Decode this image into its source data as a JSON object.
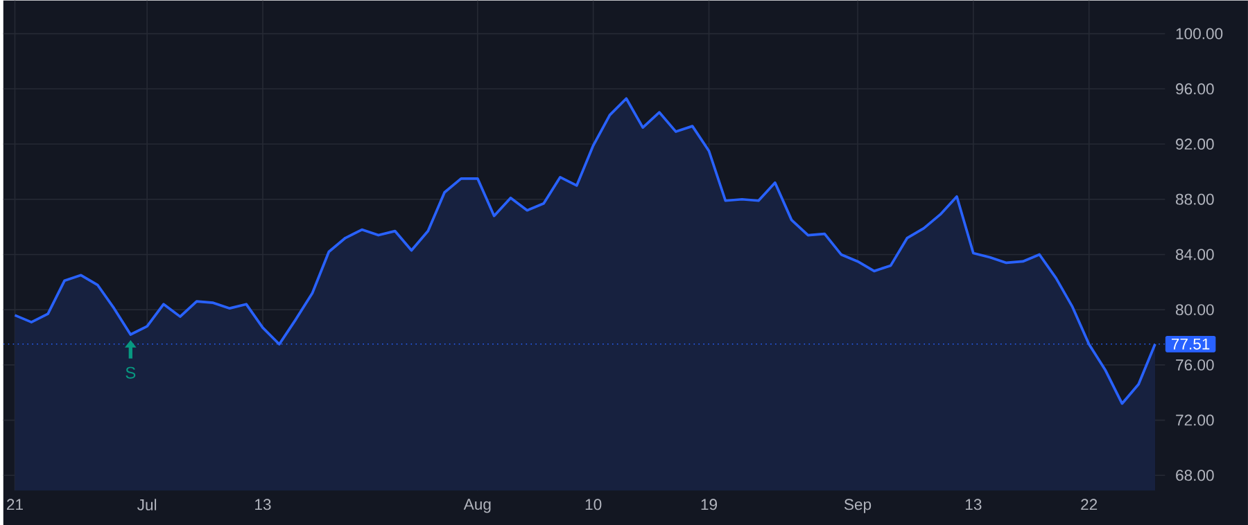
{
  "chart_data": {
    "type": "area",
    "categories": [
      "21",
      null,
      null,
      null,
      null,
      null,
      null,
      null,
      "Jul",
      null,
      null,
      null,
      null,
      null,
      null,
      "13",
      null,
      null,
      null,
      null,
      null,
      null,
      null,
      null,
      null,
      null,
      null,
      null,
      "Aug",
      null,
      null,
      null,
      null,
      null,
      null,
      "10",
      null,
      null,
      null,
      null,
      null,
      null,
      "19",
      null,
      null,
      null,
      null,
      null,
      null,
      null,
      null,
      "Sep",
      null,
      null,
      null,
      null,
      null,
      null,
      "13",
      null,
      null,
      null,
      null,
      null,
      null,
      "22",
      null,
      null,
      null,
      null
    ],
    "series": [
      {
        "color": "#2962ff",
        "values": [
          79.6,
          79.1,
          79.7,
          82.1,
          82.5,
          81.8,
          80.1,
          78.2,
          78.8,
          80.4,
          79.5,
          80.6,
          80.5,
          80.1,
          80.4,
          78.7,
          77.5,
          79.3,
          81.2,
          84.2,
          85.2,
          85.8,
          85.4,
          85.7,
          84.3,
          85.7,
          88.5,
          89.5,
          89.5,
          86.8,
          88.1,
          87.2,
          87.7,
          89.6,
          89.0,
          91.9,
          94.1,
          95.3,
          93.2,
          94.3,
          92.9,
          93.3,
          91.5,
          87.9,
          88.0,
          87.9,
          89.2,
          86.5,
          85.4,
          85.5,
          84.0,
          83.5,
          82.8,
          83.2,
          85.2,
          85.9,
          86.9,
          88.2,
          84.1,
          83.8,
          83.4,
          83.5,
          84.0,
          82.3,
          80.2,
          77.5,
          75.6,
          73.2,
          74.6,
          77.51
        ]
      }
    ],
    "ylim": [
      66.9,
      102.4
    ],
    "yticks": [
      {
        "value": 68,
        "label": "68.00"
      },
      {
        "value": 72,
        "label": "72.00"
      },
      {
        "value": 76,
        "label": "76.00"
      },
      {
        "value": 80,
        "label": "80.00"
      },
      {
        "value": 84,
        "label": "84.00"
      },
      {
        "value": 88,
        "label": "88.00"
      },
      {
        "value": 92,
        "label": "92.00"
      },
      {
        "value": 96,
        "label": "96.00"
      },
      {
        "value": 100,
        "label": "100.00"
      }
    ],
    "grid": true,
    "ref_lines": [
      {
        "axis": "y",
        "value": 77.51,
        "label": "77.51",
        "color": "#2962ff",
        "line_style": "dotted"
      }
    ],
    "annotations": [
      {
        "text": "S",
        "y": 78.2
      }
    ]
  }
}
